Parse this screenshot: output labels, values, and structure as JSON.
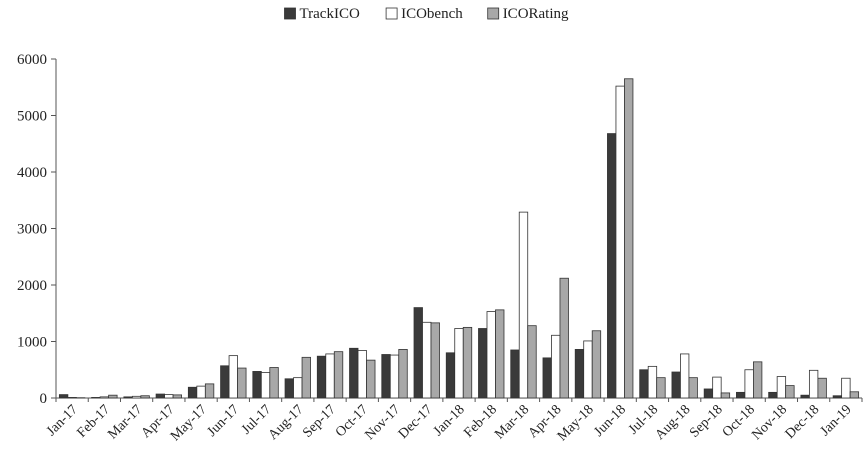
{
  "chart_data": {
    "type": "bar",
    "title": "",
    "xlabel": "",
    "ylabel": "",
    "ylim": [
      0,
      6000
    ],
    "yticks": [
      0,
      1000,
      2000,
      3000,
      4000,
      5000,
      6000
    ],
    "grid": false,
    "legend_position": "top-center",
    "categories": [
      "Jan-17",
      "Feb-17",
      "Mar-17",
      "Apr-17",
      "May-17",
      "Jun-17",
      "Jul-17",
      "Aug-17",
      "Sep-17",
      "Oct-17",
      "Nov-17",
      "Dec-17",
      "Jan-18",
      "Feb-18",
      "Mar-18",
      "Apr-18",
      "May-18",
      "Jun-18",
      "Jul-18",
      "Aug-18",
      "Sep-18",
      "Oct-18",
      "Nov-18",
      "Dec-18",
      "Jan-19"
    ],
    "series": [
      {
        "name": "TrackICO",
        "color": "#3a3a3a",
        "values": [
          60,
          10,
          20,
          70,
          190,
          570,
          470,
          340,
          740,
          880,
          770,
          1600,
          800,
          1230,
          850,
          710,
          860,
          4680,
          500,
          460,
          160,
          100,
          100,
          50,
          40
        ]
      },
      {
        "name": "ICObench",
        "color": "#ffffff",
        "values": [
          10,
          20,
          30,
          60,
          210,
          750,
          450,
          360,
          780,
          840,
          760,
          1340,
          1230,
          1530,
          3290,
          1110,
          1010,
          5520,
          560,
          780,
          370,
          500,
          380,
          490,
          350
        ]
      },
      {
        "name": "ICORating",
        "color": "#a8a8a8",
        "values": [
          5,
          50,
          40,
          55,
          250,
          530,
          540,
          720,
          820,
          670,
          860,
          1330,
          1250,
          1560,
          1280,
          2120,
          1190,
          5650,
          360,
          360,
          90,
          640,
          220,
          350,
          110
        ]
      }
    ]
  }
}
